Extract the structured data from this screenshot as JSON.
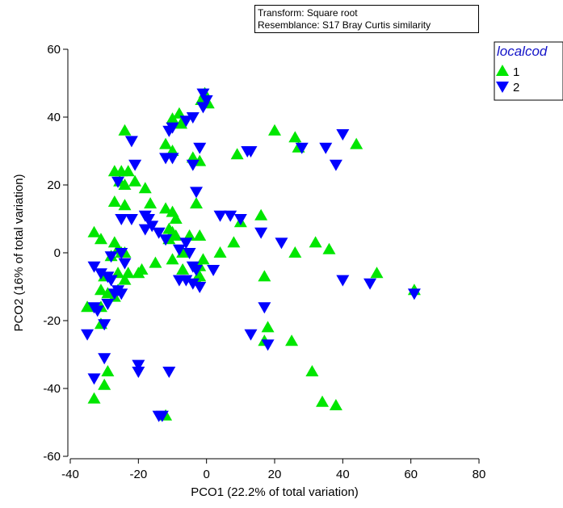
{
  "chart_data": {
    "type": "scatter",
    "xlabel": "PCO1 (22.2% of total variation)",
    "ylabel": "PCO2 (16% of total variation)",
    "xlim": [
      -40,
      80
    ],
    "ylim": [
      -60,
      60
    ],
    "x_ticks": [
      -40,
      -20,
      0,
      20,
      40,
      60,
      80
    ],
    "y_ticks": [
      -60,
      -40,
      -20,
      0,
      20,
      40,
      60
    ],
    "info_box": [
      "Transform: Square root",
      "Resemblance: S17 Bray Curtis similarity"
    ],
    "legend": {
      "title": "localcod",
      "position": "top-right",
      "title_color": "#1414c8"
    },
    "series": [
      {
        "name": "1",
        "marker": "triangle-up",
        "color": "#00e600",
        "points": [
          [
            -0.5,
            47
          ],
          [
            -1.5,
            45
          ],
          [
            0.5,
            44
          ],
          [
            -8,
            41
          ],
          [
            -10,
            39.5
          ],
          [
            -7.5,
            38
          ],
          [
            -12,
            32
          ],
          [
            -10,
            30
          ],
          [
            -2,
            27
          ],
          [
            -4,
            28
          ],
          [
            -24,
            36
          ],
          [
            -27,
            24
          ],
          [
            -25,
            24
          ],
          [
            -23,
            24
          ],
          [
            -25.5,
            21
          ],
          [
            -24,
            20
          ],
          [
            -21,
            21
          ],
          [
            -18,
            19
          ],
          [
            -24,
            14
          ],
          [
            -27,
            15
          ],
          [
            -16.5,
            14.5
          ],
          [
            -12,
            13
          ],
          [
            -10,
            12
          ],
          [
            -9,
            10
          ],
          [
            -11,
            7
          ],
          [
            -10,
            6
          ],
          [
            -9,
            5
          ],
          [
            -11,
            4
          ],
          [
            -3,
            14.5
          ],
          [
            -5,
            5
          ],
          [
            -7,
            0
          ],
          [
            -2,
            5
          ],
          [
            -1,
            -2
          ],
          [
            -2,
            -4
          ],
          [
            -3,
            -8
          ],
          [
            -2,
            -7
          ],
          [
            -7,
            -5
          ],
          [
            -10,
            -2
          ],
          [
            -33,
            6
          ],
          [
            -31,
            4
          ],
          [
            -27,
            3
          ],
          [
            -26,
            1
          ],
          [
            -25,
            0
          ],
          [
            -24,
            0
          ],
          [
            -28,
            -1
          ],
          [
            -30,
            -7
          ],
          [
            -31,
            -11
          ],
          [
            -29,
            -12
          ],
          [
            -26,
            -6
          ],
          [
            -24,
            -8
          ],
          [
            -23,
            -6
          ],
          [
            -20,
            -6
          ],
          [
            -15,
            -3
          ],
          [
            -19,
            -5
          ],
          [
            -26,
            -11
          ],
          [
            -27,
            -13
          ],
          [
            -35,
            -16
          ],
          [
            -31,
            -16
          ],
          [
            -31,
            -21
          ],
          [
            -29,
            -35
          ],
          [
            -30,
            -39
          ],
          [
            -33,
            -43
          ],
          [
            -12,
            -48
          ],
          [
            4,
            0
          ],
          [
            8,
            3
          ],
          [
            10,
            9
          ],
          [
            9,
            29
          ],
          [
            20,
            36
          ],
          [
            26,
            34
          ],
          [
            27,
            31
          ],
          [
            44,
            32
          ],
          [
            16,
            11
          ],
          [
            17,
            -7
          ],
          [
            17,
            -26
          ],
          [
            18,
            -22
          ],
          [
            25,
            -26
          ],
          [
            26,
            0
          ],
          [
            31,
            -35
          ],
          [
            32,
            3
          ],
          [
            36,
            1
          ],
          [
            34,
            -44
          ],
          [
            38,
            -45
          ],
          [
            50,
            -6
          ],
          [
            61,
            -11
          ]
        ]
      },
      {
        "name": "2",
        "marker": "triangle-down",
        "color": "#0000ff",
        "points": [
          [
            -1,
            47
          ],
          [
            0,
            45
          ],
          [
            -1,
            43
          ],
          [
            -4,
            40
          ],
          [
            -6,
            39
          ],
          [
            -10,
            37
          ],
          [
            -11,
            36
          ],
          [
            -22,
            33
          ],
          [
            -21,
            26
          ],
          [
            -12,
            28
          ],
          [
            -10,
            28
          ],
          [
            -4,
            26
          ],
          [
            -2,
            31
          ],
          [
            -3,
            18
          ],
          [
            -26,
            21
          ],
          [
            -25,
            10
          ],
          [
            -22,
            10
          ],
          [
            -18,
            11
          ],
          [
            -17,
            10
          ],
          [
            -16,
            8
          ],
          [
            -18,
            7
          ],
          [
            -14,
            6
          ],
          [
            -12,
            4
          ],
          [
            -8,
            1
          ],
          [
            -6,
            3
          ],
          [
            -5,
            0
          ],
          [
            -4,
            -4
          ],
          [
            -8,
            -8
          ],
          [
            -6,
            -8
          ],
          [
            -25,
            0
          ],
          [
            -24,
            -3
          ],
          [
            -28,
            -1
          ],
          [
            -33,
            -4
          ],
          [
            -31,
            -6
          ],
          [
            -29,
            -7
          ],
          [
            -28,
            -8
          ],
          [
            -27,
            -12
          ],
          [
            -26,
            -11
          ],
          [
            -25,
            -12
          ],
          [
            -29,
            -15
          ],
          [
            -33,
            -16
          ],
          [
            -32,
            -17
          ],
          [
            -35,
            -24
          ],
          [
            -30,
            -21
          ],
          [
            -30,
            -31
          ],
          [
            -33,
            -37
          ],
          [
            -20,
            -33
          ],
          [
            -20,
            -35
          ],
          [
            -11,
            -35
          ],
          [
            -14,
            -48
          ],
          [
            -13,
            -48
          ],
          [
            -3,
            -5
          ],
          [
            -2,
            -10
          ],
          [
            -4,
            -9
          ],
          [
            2,
            -5
          ],
          [
            4,
            11
          ],
          [
            7,
            11
          ],
          [
            10,
            10
          ],
          [
            12,
            30
          ],
          [
            13,
            30
          ],
          [
            13,
            -24
          ],
          [
            16,
            6
          ],
          [
            17,
            -16
          ],
          [
            18,
            -27
          ],
          [
            22,
            3
          ],
          [
            28,
            31
          ],
          [
            35,
            31
          ],
          [
            40,
            35
          ],
          [
            38,
            26
          ],
          [
            40,
            -8
          ],
          [
            48,
            -9
          ],
          [
            61,
            -12
          ]
        ]
      }
    ]
  }
}
